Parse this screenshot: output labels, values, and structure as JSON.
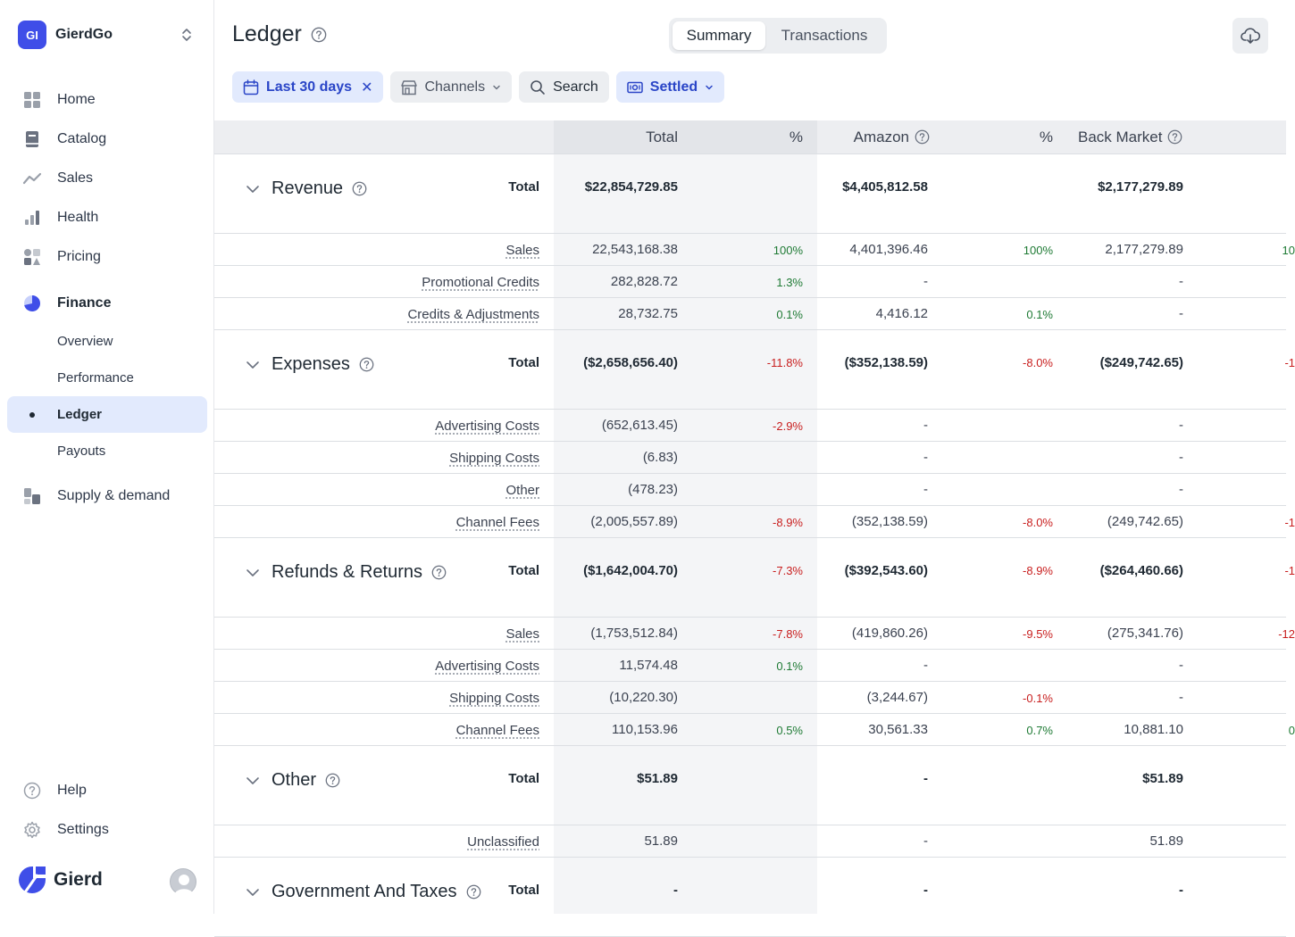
{
  "org": {
    "badge": "GI",
    "name": "GierdGo"
  },
  "nav": {
    "items": [
      {
        "label": "Home",
        "icon": "grid-icon"
      },
      {
        "label": "Catalog",
        "icon": "book-icon"
      },
      {
        "label": "Sales",
        "icon": "trend-icon"
      },
      {
        "label": "Health",
        "icon": "bar-chart-icon"
      },
      {
        "label": "Pricing",
        "icon": "shapes-icon"
      }
    ],
    "finance": {
      "label": "Finance",
      "icon": "pie-icon"
    },
    "finance_sub": [
      "Overview",
      "Performance",
      "Ledger",
      "Payouts"
    ],
    "supply": {
      "label": "Supply & demand",
      "icon": "boxes-icon"
    },
    "bottom": [
      {
        "label": "Help",
        "icon": "question-icon"
      },
      {
        "label": "Settings",
        "icon": "gear-icon"
      }
    ],
    "brand": "Gierd"
  },
  "header": {
    "title": "Ledger",
    "tabs": [
      "Summary",
      "Transactions"
    ],
    "active_tab": "Summary"
  },
  "filters": {
    "date": "Last 30 days",
    "channels": "Channels",
    "search": "Search",
    "status": "Settled"
  },
  "colors": {
    "accent": "#3f4ee8",
    "chip_blue_bg": "#e2eafd",
    "chip_blue_text": "#2a45c7",
    "positive": "#1e7a34",
    "negative": "#c81e1e"
  },
  "table": {
    "columns": {
      "total": "Total",
      "pct": "%",
      "amazon": "Amazon",
      "amazon_pct": "%",
      "back_market": "Back Market"
    },
    "total_label": "Total",
    "sections": [
      {
        "name": "Revenue",
        "total": {
          "total": "$22,854,729.85",
          "pct": "",
          "amazon": "$4,405,812.58",
          "amazon_pct": "",
          "bm": "$2,177,279.89",
          "bm_pct": ""
        },
        "rows": [
          {
            "label": "Sales",
            "total": "22,543,168.38",
            "pct": "100%",
            "amazon": "4,401,396.46",
            "amazon_pct": "100%",
            "bm": "2,177,279.89",
            "bm_pct": "10"
          },
          {
            "label": "Promotional Credits",
            "total": "282,828.72",
            "pct": "1.3%",
            "amazon": "-",
            "amazon_pct": "",
            "bm": "-",
            "bm_pct": ""
          },
          {
            "label": "Credits & Adjustments",
            "total": "28,732.75",
            "pct": "0.1%",
            "amazon": "4,416.12",
            "amazon_pct": "0.1%",
            "bm": "-",
            "bm_pct": ""
          }
        ]
      },
      {
        "name": "Expenses",
        "total": {
          "total": "($2,658,656.40)",
          "pct": "-11.8%",
          "amazon": "($352,138.59)",
          "amazon_pct": "-8.0%",
          "bm": "($249,742.65)",
          "bm_pct": "-1"
        },
        "rows": [
          {
            "label": "Advertising Costs",
            "total": "(652,613.45)",
            "pct": "-2.9%",
            "amazon": "-",
            "amazon_pct": "",
            "bm": "-",
            "bm_pct": ""
          },
          {
            "label": "Shipping Costs",
            "total": "(6.83)",
            "pct": "",
            "amazon": "-",
            "amazon_pct": "",
            "bm": "-",
            "bm_pct": ""
          },
          {
            "label": "Other",
            "total": "(478.23)",
            "pct": "",
            "amazon": "-",
            "amazon_pct": "",
            "bm": "-",
            "bm_pct": ""
          },
          {
            "label": "Channel Fees",
            "total": "(2,005,557.89)",
            "pct": "-8.9%",
            "amazon": "(352,138.59)",
            "amazon_pct": "-8.0%",
            "bm": "(249,742.65)",
            "bm_pct": "-1"
          }
        ]
      },
      {
        "name": "Refunds & Returns",
        "total": {
          "total": "($1,642,004.70)",
          "pct": "-7.3%",
          "amazon": "($392,543.60)",
          "amazon_pct": "-8.9%",
          "bm": "($264,460.66)",
          "bm_pct": "-1"
        },
        "rows": [
          {
            "label": "Sales",
            "total": "(1,753,512.84)",
            "pct": "-7.8%",
            "amazon": "(419,860.26)",
            "amazon_pct": "-9.5%",
            "bm": "(275,341.76)",
            "bm_pct": "-12"
          },
          {
            "label": "Advertising Costs",
            "total": "11,574.48",
            "pct": "0.1%",
            "amazon": "-",
            "amazon_pct": "",
            "bm": "-",
            "bm_pct": ""
          },
          {
            "label": "Shipping Costs",
            "total": "(10,220.30)",
            "pct": "",
            "amazon": "(3,244.67)",
            "amazon_pct": "-0.1%",
            "bm": "-",
            "bm_pct": ""
          },
          {
            "label": "Channel Fees",
            "total": "110,153.96",
            "pct": "0.5%",
            "amazon": "30,561.33",
            "amazon_pct": "0.7%",
            "bm": "10,881.10",
            "bm_pct": "0"
          }
        ]
      },
      {
        "name": "Other",
        "total": {
          "total": "$51.89",
          "pct": "",
          "amazon": "-",
          "amazon_pct": "",
          "bm": "$51.89",
          "bm_pct": ""
        },
        "rows": [
          {
            "label": "Unclassified",
            "total": "51.89",
            "pct": "",
            "amazon": "-",
            "amazon_pct": "",
            "bm": "51.89",
            "bm_pct": ""
          }
        ]
      },
      {
        "name": "Government And Taxes",
        "total": {
          "total": "-",
          "pct": "",
          "amazon": "-",
          "amazon_pct": "",
          "bm": "-",
          "bm_pct": ""
        },
        "rows": []
      }
    ]
  }
}
